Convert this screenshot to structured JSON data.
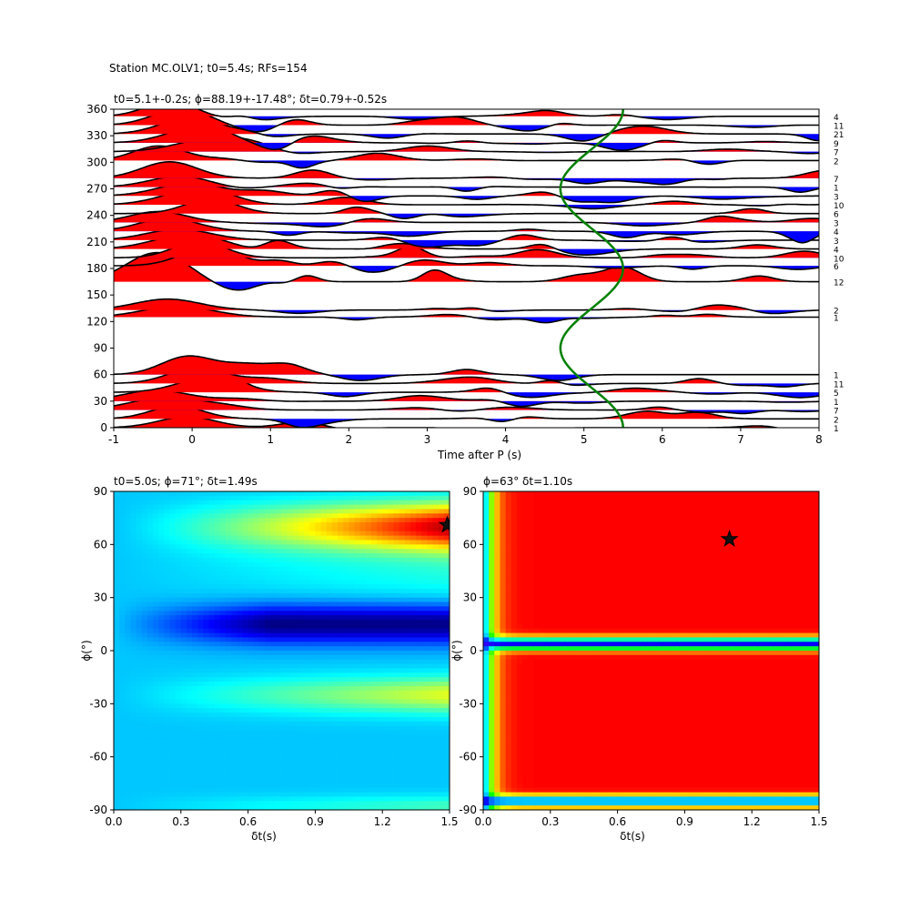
{
  "figure": {
    "suptitle": "Station MC.OLV1; t0=5.4s; RFs=154"
  },
  "chart_data": [
    {
      "type": "line",
      "name": "rf-stack",
      "title": "t0=5.1+-0.2s; ϕ=88.19+-17.48°; δt=0.79+-0.52s",
      "xlabel": "Time after P (s)",
      "ylabel": "",
      "xlim": [
        -1,
        8
      ],
      "ylim": [
        0,
        360
      ],
      "xticks": [
        "-1",
        "0",
        "1",
        "2",
        "3",
        "4",
        "5",
        "6",
        "7",
        "8"
      ],
      "yticks": [
        "0",
        "30",
        "60",
        "90",
        "120",
        "150",
        "180",
        "210",
        "240",
        "270",
        "300",
        "330",
        "360"
      ],
      "fill_colors": {
        "positive": "#ff0000",
        "negative": "#0000ff"
      },
      "traces": [
        {
          "baz": 0,
          "count": "1",
          "amp": 0.6,
          "seed": 1
        },
        {
          "baz": 10,
          "count": "2",
          "amp": 0.7,
          "seed": 2
        },
        {
          "baz": 20,
          "count": "7",
          "amp": 0.7,
          "seed": 3
        },
        {
          "baz": 30,
          "count": "1",
          "amp": 0.6,
          "seed": 4
        },
        {
          "baz": 40,
          "count": "5",
          "amp": 0.8,
          "seed": 5
        },
        {
          "baz": 50,
          "count": "11",
          "amp": 0.9,
          "seed": 6
        },
        {
          "baz": 60,
          "count": "1",
          "amp": 1.0,
          "seed": 7
        },
        {
          "baz": 125,
          "count": "1",
          "amp": 0.6,
          "seed": 8
        },
        {
          "baz": 133,
          "count": "2",
          "amp": 0.6,
          "seed": 9
        },
        {
          "baz": 165,
          "count": "12",
          "amp": 1.6,
          "seed": 10
        },
        {
          "baz": 183,
          "count": "6",
          "amp": 1.0,
          "seed": 11
        },
        {
          "baz": 192,
          "count": "10",
          "amp": 0.9,
          "seed": 12
        },
        {
          "baz": 202,
          "count": "4",
          "amp": 0.8,
          "seed": 13
        },
        {
          "baz": 212,
          "count": "3",
          "amp": 0.6,
          "seed": 14
        },
        {
          "baz": 222,
          "count": "4",
          "amp": 0.7,
          "seed": 15
        },
        {
          "baz": 232,
          "count": "3",
          "amp": 0.6,
          "seed": 16
        },
        {
          "baz": 242,
          "count": "6",
          "amp": 0.8,
          "seed": 17
        },
        {
          "baz": 252,
          "count": "10",
          "amp": 0.9,
          "seed": 18
        },
        {
          "baz": 262,
          "count": "3",
          "amp": 0.7,
          "seed": 19
        },
        {
          "baz": 272,
          "count": "1",
          "amp": 0.6,
          "seed": 20
        },
        {
          "baz": 282,
          "count": "7",
          "amp": 0.9,
          "seed": 21
        },
        {
          "baz": 302,
          "count": "2",
          "amp": 0.8,
          "seed": 22
        },
        {
          "baz": 312,
          "count": "7",
          "amp": 0.7,
          "seed": 23
        },
        {
          "baz": 322,
          "count": "9",
          "amp": 0.9,
          "seed": 24
        },
        {
          "baz": 332,
          "count": "21",
          "amp": 0.9,
          "seed": 25
        },
        {
          "baz": 342,
          "count": "11",
          "amp": 0.9,
          "seed": 26
        },
        {
          "baz": 352,
          "count": "4",
          "amp": 0.8,
          "seed": 27
        }
      ],
      "t0_curve": {
        "color": "#008000",
        "mean": 5.1,
        "amplitude": 0.4,
        "phase_deg": 0
      }
    },
    {
      "type": "heatmap",
      "name": "grid-search",
      "title": "t0=5.0s; ϕ=71°; δt=1.49s",
      "xlabel": "δt(s)",
      "ylabel": "ϕ(°)",
      "xlim": [
        0,
        1.5
      ],
      "ylim": [
        -90,
        90
      ],
      "xticks": [
        "0.0",
        "0.3",
        "0.6",
        "0.9",
        "1.2",
        "1.5"
      ],
      "yticks": [
        "-90",
        "-60",
        "-30",
        "0",
        "30",
        "60",
        "90"
      ],
      "colormap": "jet",
      "best": {
        "dt": 1.49,
        "phi": 71
      }
    },
    {
      "type": "heatmap",
      "name": "energy",
      "title": "ϕ=63° δt=1.10s",
      "xlabel": "δt(s)",
      "ylabel": "ϕ(°)",
      "xlim": [
        0,
        1.5
      ],
      "ylim": [
        -90,
        90
      ],
      "xticks": [
        "0.0",
        "0.3",
        "0.6",
        "0.9",
        "1.2",
        "1.5"
      ],
      "yticks": [
        "-90",
        "-60",
        "-30",
        "0",
        "30",
        "60",
        "90"
      ],
      "colormap": "gist_rainbow_r",
      "best": {
        "dt": 1.1,
        "phi": 63
      }
    }
  ]
}
